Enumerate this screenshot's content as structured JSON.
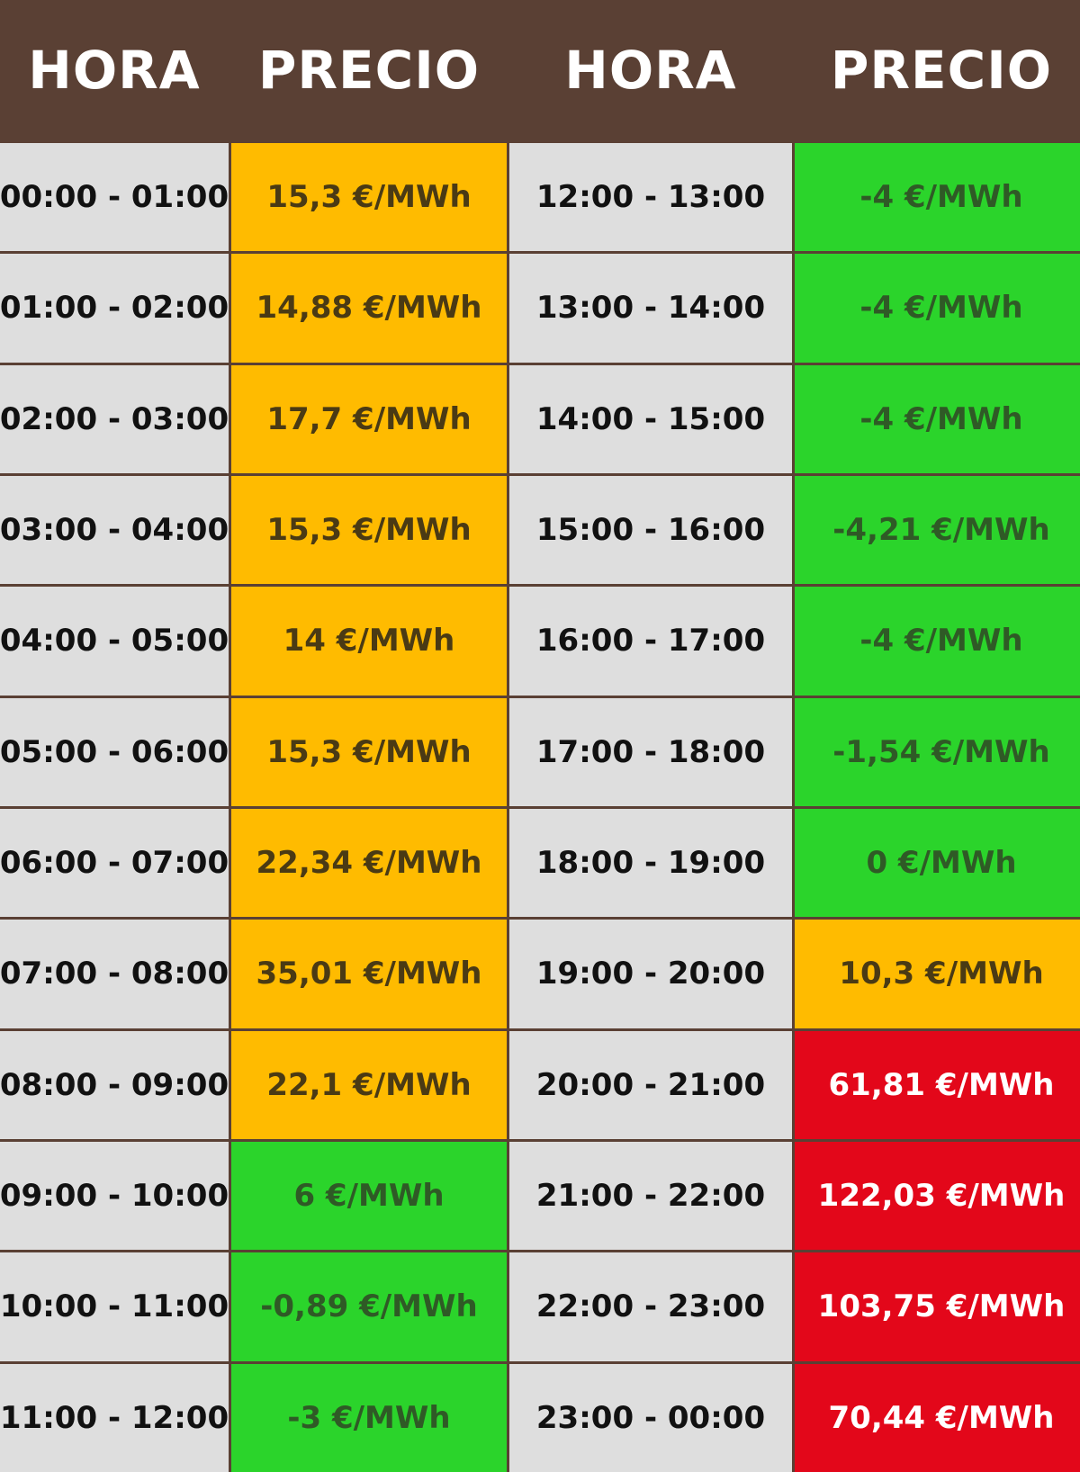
{
  "header": {
    "col1": "HORA",
    "col2": "PRECIO",
    "col3": "HORA",
    "col4": "PRECIO"
  },
  "colors": {
    "header_bg": "#5a4034",
    "hora_bg": "#dedede",
    "tier_medium": "#ffbb00",
    "tier_low": "#2bd42b",
    "tier_high": "#e3071a"
  },
  "rows": [
    {
      "hora_left": "00:00 - 01:00",
      "precio_left": "15,3 €/MWh",
      "tier_left": "medium",
      "hora_right": "12:00 - 13:00",
      "precio_right": "-4 €/MWh",
      "tier_right": "low"
    },
    {
      "hora_left": "01:00 - 02:00",
      "precio_left": "14,88 €/MWh",
      "tier_left": "medium",
      "hora_right": "13:00 - 14:00",
      "precio_right": "-4 €/MWh",
      "tier_right": "low"
    },
    {
      "hora_left": "02:00 - 03:00",
      "precio_left": "17,7 €/MWh",
      "tier_left": "medium",
      "hora_right": "14:00 - 15:00",
      "precio_right": "-4 €/MWh",
      "tier_right": "low"
    },
    {
      "hora_left": "03:00 - 04:00",
      "precio_left": "15,3 €/MWh",
      "tier_left": "medium",
      "hora_right": "15:00 - 16:00",
      "precio_right": "-4,21 €/MWh",
      "tier_right": "low"
    },
    {
      "hora_left": "04:00 - 05:00",
      "precio_left": "14 €/MWh",
      "tier_left": "medium",
      "hora_right": "16:00 - 17:00",
      "precio_right": "-4 €/MWh",
      "tier_right": "low"
    },
    {
      "hora_left": "05:00 - 06:00",
      "precio_left": "15,3 €/MWh",
      "tier_left": "medium",
      "hora_right": "17:00 - 18:00",
      "precio_right": "-1,54 €/MWh",
      "tier_right": "low"
    },
    {
      "hora_left": "06:00 - 07:00",
      "precio_left": "22,34 €/MWh",
      "tier_left": "medium",
      "hora_right": "18:00 - 19:00",
      "precio_right": "0 €/MWh",
      "tier_right": "low"
    },
    {
      "hora_left": "07:00 - 08:00",
      "precio_left": "35,01 €/MWh",
      "tier_left": "medium",
      "hora_right": "19:00 - 20:00",
      "precio_right": "10,3 €/MWh",
      "tier_right": "medium"
    },
    {
      "hora_left": "08:00 - 09:00",
      "precio_left": "22,1 €/MWh",
      "tier_left": "medium",
      "hora_right": "20:00 - 21:00",
      "precio_right": "61,81 €/MWh",
      "tier_right": "high"
    },
    {
      "hora_left": "09:00 - 10:00",
      "precio_left": "6 €/MWh",
      "tier_left": "low",
      "hora_right": "21:00 - 22:00",
      "precio_right": "122,03 €/MWh",
      "tier_right": "high"
    },
    {
      "hora_left": "10:00 - 11:00",
      "precio_left": "-0,89 €/MWh",
      "tier_left": "low",
      "hora_right": "22:00 - 23:00",
      "precio_right": "103,75 €/MWh",
      "tier_right": "high"
    },
    {
      "hora_left": "11:00 - 12:00",
      "precio_left": "-3 €/MWh",
      "tier_left": "low",
      "hora_right": "23:00 - 00:00",
      "precio_right": "70,44 €/MWh",
      "tier_right": "high"
    }
  ]
}
